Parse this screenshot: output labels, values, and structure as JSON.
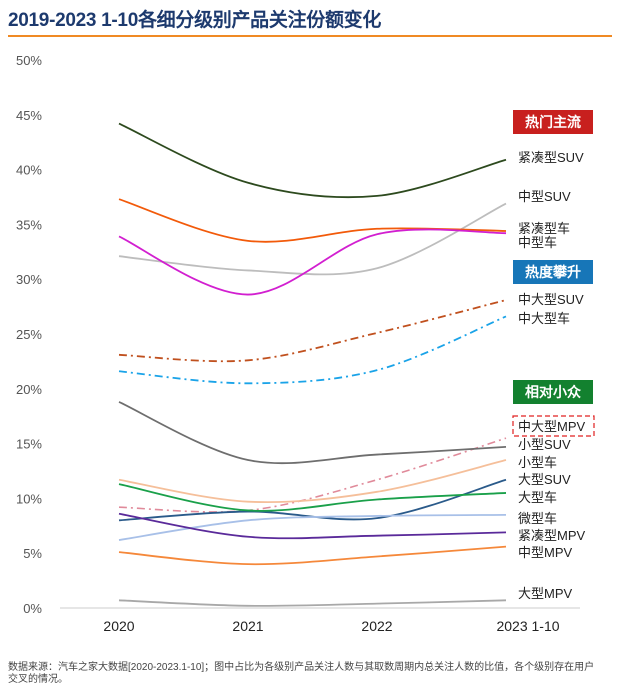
{
  "title": "2019-2023 1-10各细分级别产品关注份额变化",
  "note": "数据来源：汽车之家大数据[2020-2023.1-10]；图中占比为各级别产品关注人数与其取数周期内总关注人数的比值，各个级别存在用户交叉的情况。",
  "groups": [
    {
      "label": "热门主流",
      "color": "#c8201e"
    },
    {
      "label": "热度攀升",
      "color": "#1776b8"
    },
    {
      "label": "相对小众",
      "color": "#13812f"
    }
  ],
  "chart_data": {
    "type": "line",
    "categories": [
      "2020",
      "2021",
      "2022",
      "2023 1-10"
    ],
    "ylim": [
      0,
      50
    ],
    "yticks": [
      "0%",
      "5%",
      "10%",
      "15%",
      "20%",
      "25%",
      "30%",
      "35%",
      "40%",
      "45%",
      "50%"
    ],
    "grid": false,
    "legend": "right, labels at line ends",
    "highlighted_series": "中大型MPV",
    "series": [
      {
        "name": "紧凑型SUV",
        "values": [
          44.2,
          38.8,
          37.6,
          40.9
        ],
        "color": "#2d4a1e",
        "dash": "solid",
        "group": 0
      },
      {
        "name": "中型SUV",
        "values": [
          32.1,
          30.8,
          31.0,
          36.9
        ],
        "color": "#bdbdbd",
        "dash": "solid",
        "group": 0
      },
      {
        "name": "紧凑型车",
        "values": [
          37.3,
          33.5,
          34.6,
          34.4
        ],
        "color": "#f25a0a",
        "dash": "solid",
        "group": 0
      },
      {
        "name": "中型车",
        "values": [
          33.9,
          28.6,
          34.1,
          34.2
        ],
        "color": "#d21fd0",
        "dash": "solid",
        "group": 0
      },
      {
        "name": "中大型SUV",
        "values": [
          23.1,
          22.6,
          25.1,
          28.1
        ],
        "color": "#c0501e",
        "dash": "dashdot",
        "group": 1
      },
      {
        "name": "中大型车",
        "values": [
          21.6,
          20.5,
          21.7,
          26.6
        ],
        "color": "#1aa3e8",
        "dash": "dashdot",
        "group": 1
      },
      {
        "name": "中大型MPV",
        "values": [
          9.2,
          8.9,
          11.7,
          15.5
        ],
        "color": "#e08a9a",
        "dash": "dashdot",
        "group": 2
      },
      {
        "name": "小型SUV",
        "values": [
          18.8,
          13.5,
          14.0,
          14.7
        ],
        "color": "#6e6e6e",
        "dash": "solid",
        "group": 2
      },
      {
        "name": "小型车",
        "values": [
          11.7,
          9.7,
          10.6,
          13.5
        ],
        "color": "#f5bf9a",
        "dash": "solid",
        "group": 2
      },
      {
        "name": "大型SUV",
        "values": [
          8.0,
          8.8,
          8.2,
          11.7
        ],
        "color": "#2a5a8a",
        "dash": "solid",
        "group": 2
      },
      {
        "name": "大型车",
        "values": [
          11.3,
          8.9,
          9.9,
          10.5
        ],
        "color": "#1aa04a",
        "dash": "solid",
        "group": 2
      },
      {
        "name": "微型车",
        "values": [
          6.2,
          8.0,
          8.4,
          8.5
        ],
        "color": "#a8c0e8",
        "dash": "solid",
        "group": 2
      },
      {
        "name": "紧凑型MPV",
        "values": [
          8.6,
          6.5,
          6.6,
          6.9
        ],
        "color": "#5a2a9a",
        "dash": "solid",
        "group": 2
      },
      {
        "name": "中型MPV",
        "values": [
          5.1,
          4.0,
          4.7,
          5.6
        ],
        "color": "#f5883a",
        "dash": "solid",
        "group": 2
      },
      {
        "name": "大型MPV",
        "values": [
          0.7,
          0.2,
          0.4,
          0.7
        ],
        "color": "#a8a8a8",
        "dash": "solid",
        "group": 2
      }
    ]
  }
}
